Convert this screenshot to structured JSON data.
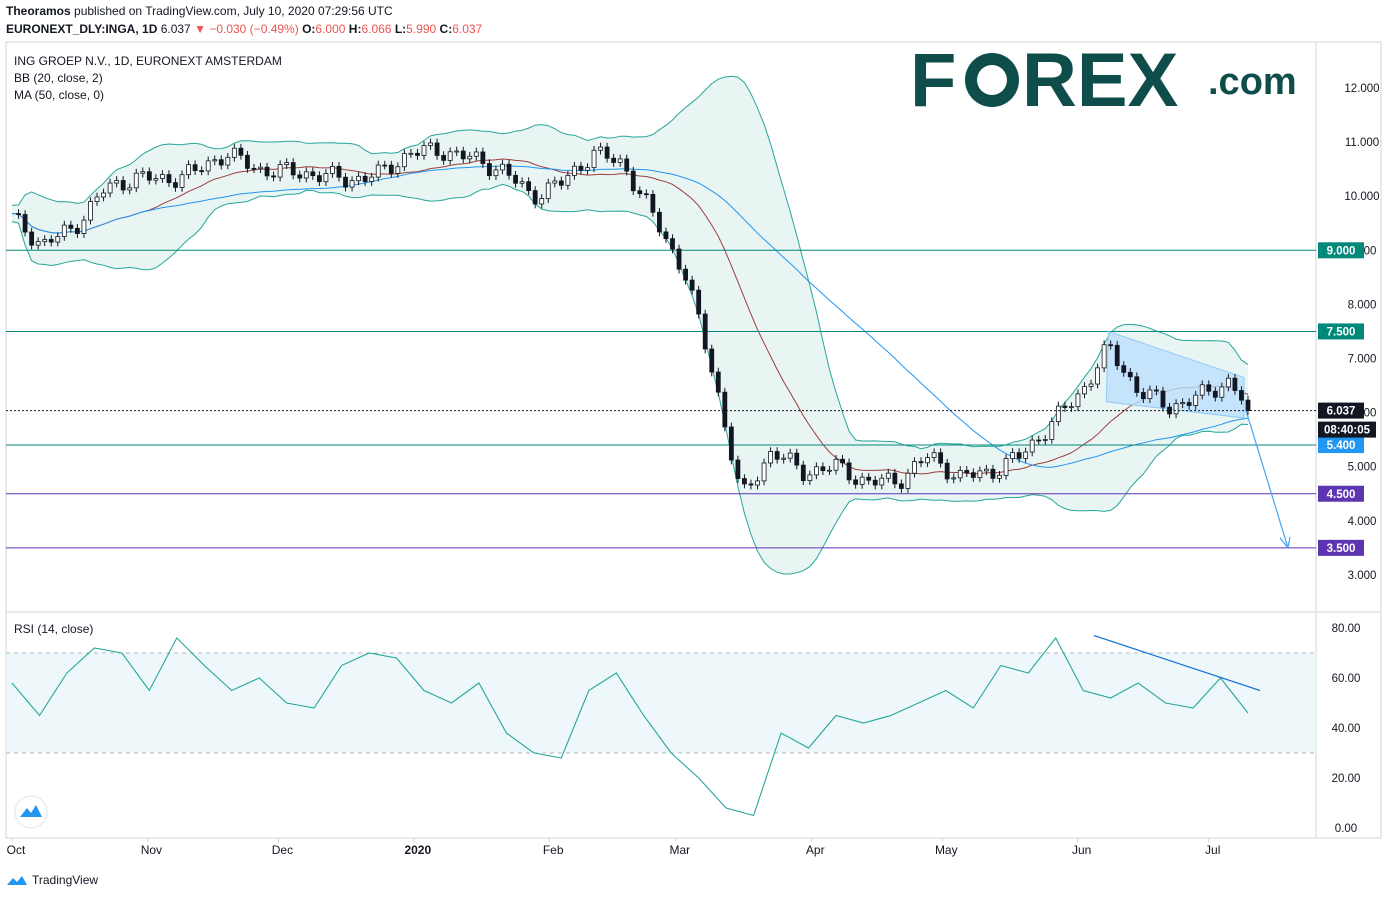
{
  "header": {
    "author": "Theoramos",
    "published": " published on TradingView.com, July 10, 2020 07:29:56 UTC",
    "symbol": "EURONEXT_DLY:INGA, 1D",
    "last": "6.037",
    "change": "−0.030 (−0.49%)",
    "o_label": "O:",
    "o_val": "6.000",
    "h_label": "H:",
    "h_val": "6.066",
    "l_label": "L:",
    "l_val": "5.990",
    "c_label": "C:",
    "c_val": "6.037"
  },
  "legend": {
    "title": "ING GROEP N.V., 1D, EURONEXT AMSTERDAM",
    "bb": "BB (20, close, 2)",
    "ma": "MA (50, close, 0)",
    "rsi": "RSI (14, close)"
  },
  "logo": {
    "forex_a": "F",
    "forex_b": "REX",
    "forex_c": ".com",
    "forex_o": "O"
  },
  "branding": {
    "tradingview": "TradingView"
  },
  "colors": {
    "up": "#ffffff",
    "down": "#131722",
    "bb": "#26a69a",
    "bb_fill": "#e8f5f3",
    "ma20": "#9c3d3d",
    "ma50": "#2196f3",
    "teal_line": "#00897b",
    "purple_line": "#5e35b1",
    "channel": "#90caf9",
    "forex_green": "#0e4d4a",
    "forex_gray": "#8d8d8d"
  },
  "chart_data": [
    {
      "type": "candlestick",
      "title": "ING GROEP N.V., 1D, EURONEXT AMSTERDAM",
      "y_ticks": [
        12.0,
        11.0,
        10.0,
        9.0,
        8.0,
        7.0,
        6.0,
        5.0,
        4.0,
        3.0
      ],
      "y_tick_labels": [
        "12.000",
        "11.000",
        "10.000",
        "9.000",
        "8.000",
        "7.000",
        "6.000",
        "5.000",
        "4.000",
        "3.000"
      ],
      "x_tick_labels": [
        "Oct",
        "Nov",
        "Dec",
        "2020",
        "Feb",
        "Mar",
        "Apr",
        "May",
        "Jun",
        "Jul"
      ],
      "ylim": [
        2.5,
        12.7
      ],
      "horizontal_levels": [
        {
          "value": 9.0,
          "label": "9.000",
          "color": "#00897b"
        },
        {
          "value": 7.5,
          "label": "7.500",
          "color": "#00897b"
        },
        {
          "value": 5.4,
          "label": "5.400",
          "color": "#00897b"
        },
        {
          "value": 4.5,
          "label": "4.500",
          "color": "#5e35b1"
        },
        {
          "value": 3.5,
          "label": "3.500",
          "color": "#5e35b1"
        }
      ],
      "last_price": {
        "value": 6.037,
        "label": "6.037",
        "countdown": "08:40:05"
      },
      "close_path": [
        [
          "2019-10-01",
          9.6
        ],
        [
          "2019-10-08",
          9.1
        ],
        [
          "2019-10-15",
          9.4
        ],
        [
          "2019-10-22",
          10.1
        ],
        [
          "2019-10-29",
          10.35
        ],
        [
          "2019-11-05",
          10.3
        ],
        [
          "2019-11-12",
          10.45
        ],
        [
          "2019-11-19",
          10.8
        ],
        [
          "2019-11-26",
          10.5
        ],
        [
          "2019-12-03",
          10.45
        ],
        [
          "2019-12-10",
          10.4
        ],
        [
          "2019-12-17",
          10.3
        ],
        [
          "2019-12-24",
          10.4
        ],
        [
          "2019-12-31",
          10.8
        ],
        [
          "2020-01-07",
          10.85
        ],
        [
          "2020-01-14",
          10.7
        ],
        [
          "2020-01-21",
          10.5
        ],
        [
          "2020-01-28",
          10.0
        ],
        [
          "2020-02-04",
          10.25
        ],
        [
          "2020-02-11",
          10.8
        ],
        [
          "2020-02-18",
          10.6
        ],
        [
          "2020-02-25",
          9.6
        ],
        [
          "2020-03-03",
          8.6
        ],
        [
          "2020-03-10",
          6.6
        ],
        [
          "2020-03-16",
          4.4
        ],
        [
          "2020-03-23",
          5.3
        ],
        [
          "2020-03-30",
          4.9
        ],
        [
          "2020-04-07",
          5.0
        ],
        [
          "2020-04-14",
          4.7
        ],
        [
          "2020-04-21",
          4.75
        ],
        [
          "2020-04-28",
          5.2
        ],
        [
          "2020-05-05",
          4.8
        ],
        [
          "2020-05-12",
          4.9
        ],
        [
          "2020-05-19",
          5.2
        ],
        [
          "2020-05-26",
          5.8
        ],
        [
          "2020-06-02",
          6.4
        ],
        [
          "2020-06-08",
          7.2
        ],
        [
          "2020-06-15",
          6.4
        ],
        [
          "2020-06-22",
          6.1
        ],
        [
          "2020-06-29",
          6.3
        ],
        [
          "2020-07-06",
          6.6
        ],
        [
          "2020-07-10",
          6.037
        ]
      ]
    },
    {
      "type": "line",
      "title": "RSI (14, close)",
      "y_ticks": [
        80,
        60,
        40,
        20,
        0
      ],
      "y_tick_labels": [
        "80.00",
        "60.00",
        "40.00",
        "20.00",
        "0.00"
      ],
      "bands": [
        70,
        30
      ],
      "series": [
        {
          "values": [
            58,
            45,
            62,
            72,
            70,
            55,
            76,
            65,
            55,
            60,
            50,
            48,
            65,
            70,
            68,
            55,
            50,
            58,
            38,
            30,
            28,
            55,
            62,
            45,
            30,
            20,
            8,
            5,
            38,
            32,
            45,
            42,
            45,
            50,
            55,
            48,
            65,
            62,
            76,
            55,
            52,
            58,
            50,
            48,
            60,
            46
          ]
        }
      ]
    }
  ]
}
